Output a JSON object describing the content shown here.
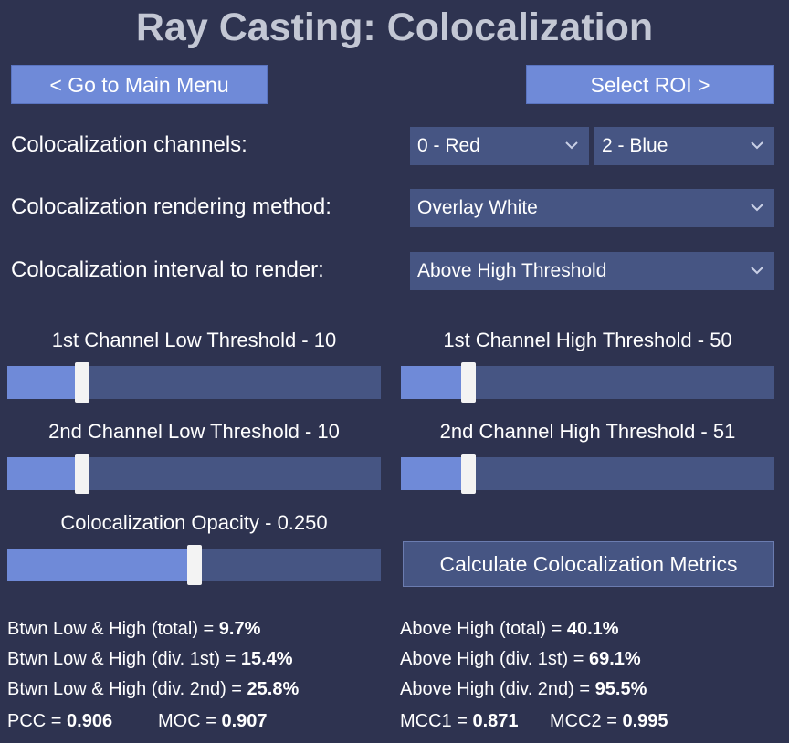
{
  "title": "Ray Casting: Colocalization",
  "nav": {
    "back_label": "<   Go to Main Menu",
    "next_label": "Select ROI >"
  },
  "settings": {
    "channels_label": "Colocalization channels:",
    "channel_a": "0 - Red",
    "channel_b": "2 - Blue",
    "method_label": "Colocalization rendering method:",
    "method_value": "Overlay White",
    "interval_label": "Colocalization interval to render:",
    "interval_value": "Above High Threshold"
  },
  "sliders": {
    "ch1_low": {
      "label": "1st Channel Low Threshold - 10",
      "fraction": 0.2
    },
    "ch1_high": {
      "label": "1st Channel High Threshold - 50",
      "fraction": 0.18
    },
    "ch2_low": {
      "label": "2nd Channel Low Threshold - 10",
      "fraction": 0.2
    },
    "ch2_high": {
      "label": "2nd Channel High Threshold - 51",
      "fraction": 0.18
    },
    "opacity": {
      "label": "Colocalization Opacity - 0.250",
      "fraction": 0.5
    }
  },
  "calc_button": "Calculate Colocalization Metrics",
  "metrics": {
    "btwn_total": {
      "label": "Btwn Low & High (total) = ",
      "value": "9.7%"
    },
    "btwn_div1": {
      "label": "Btwn Low & High (div. 1st) = ",
      "value": "15.4%"
    },
    "btwn_div2": {
      "label": "Btwn Low & High (div. 2nd) = ",
      "value": "25.8%"
    },
    "pcc": {
      "label": "PCC = ",
      "value": "0.906"
    },
    "moc": {
      "label": "MOC = ",
      "value": "0.907"
    },
    "above_total": {
      "label": "Above High (total) = ",
      "value": "40.1%"
    },
    "above_div1": {
      "label": "Above High (div. 1st) = ",
      "value": "69.1%"
    },
    "above_div2": {
      "label": "Above High (div. 2nd) = ",
      "value": "95.5%"
    },
    "mcc1": {
      "label": "MCC1 = ",
      "value": "0.871"
    },
    "mcc2": {
      "label": "MCC2 = ",
      "value": "0.995"
    }
  },
  "colors": {
    "background": "#2e3350",
    "accent": "#6f8ad8",
    "control": "#465583",
    "title": "#c3c7d4"
  }
}
